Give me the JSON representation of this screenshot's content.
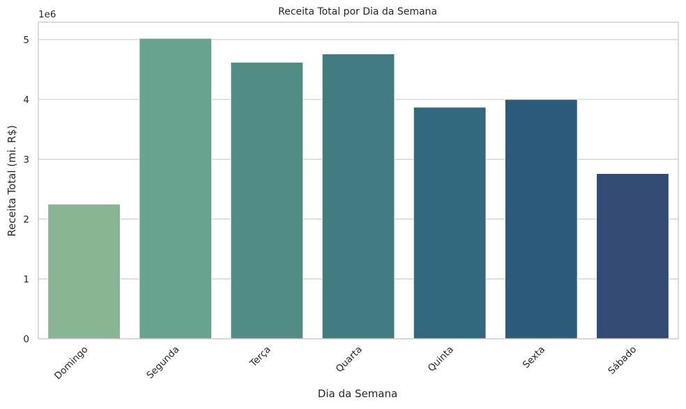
{
  "chart_data": {
    "type": "bar",
    "title": "Receita Total por Dia da Semana",
    "xlabel": "Dia da Semana",
    "ylabel": "Receita Total (mi. R$)",
    "y_exponent_label": "1e6",
    "categories": [
      "Domingo",
      "Segunda",
      "Terça",
      "Quarta",
      "Quinta",
      "Sexta",
      "Sábado"
    ],
    "values": [
      2250000,
      5020000,
      4620000,
      4760000,
      3870000,
      4000000,
      2760000
    ],
    "ylim": [
      0,
      5290000
    ],
    "yticks": [
      0,
      1,
      2,
      3,
      4,
      5
    ],
    "ytick_scale": 1000000,
    "grid": "horizontal",
    "colors": [
      "#8ab595",
      "#69a28e",
      "#518d85",
      "#407c81",
      "#306a7c",
      "#2b5a7a",
      "#324a74"
    ]
  }
}
